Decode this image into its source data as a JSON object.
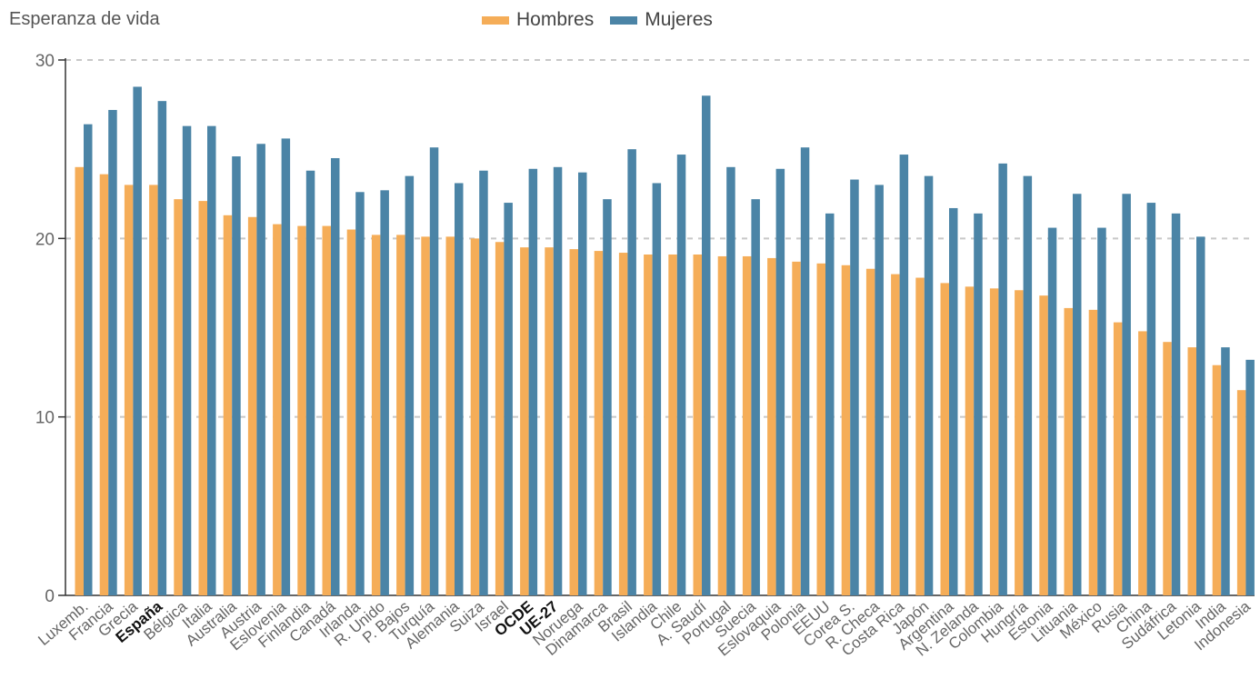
{
  "chart_data": {
    "type": "bar",
    "ylabel": "Esperanza de vida",
    "ylim": [
      0,
      30
    ],
    "yticks": [
      0,
      10,
      20,
      30
    ],
    "grid": true,
    "legend_position": "top-center",
    "categories": [
      "Luxemb.",
      "Francia",
      "Grecia",
      "España",
      "Bélgica",
      "Italia",
      "Australia",
      "Austria",
      "Eslovenia",
      "Finlandia",
      "Canadá",
      "Irlanda",
      "R. Unido",
      "P. Bajos",
      "Turquía",
      "Alemania",
      "Suiza",
      "Israel",
      "OCDE",
      "UE-27",
      "Noruega",
      "Dinamarca",
      "Brasil",
      "Islandia",
      "Chile",
      "A. Saudí",
      "Portugal",
      "Suecia",
      "Eslovaquia",
      "Polonia",
      "EEUU",
      "Corea S.",
      "R. Checa",
      "Costa Rica",
      "Japón",
      "Argentina",
      "N. Zelanda",
      "Colombia",
      "Hungría",
      "Estonia",
      "Lituania",
      "México",
      "Rusia",
      "China",
      "Sudáfrica",
      "Letonia",
      "India",
      "Indonesia"
    ],
    "bold_categories": [
      "España",
      "OCDE",
      "UE-27"
    ],
    "series": [
      {
        "name": "Hombres",
        "color": "#F5AD58",
        "values": [
          24.0,
          23.6,
          23.0,
          23.0,
          22.2,
          22.1,
          21.3,
          21.2,
          20.8,
          20.7,
          20.7,
          20.5,
          20.2,
          20.2,
          20.1,
          20.1,
          20.0,
          19.8,
          19.5,
          19.5,
          19.4,
          19.3,
          19.2,
          19.1,
          19.1,
          19.1,
          19.0,
          19.0,
          18.9,
          18.7,
          18.6,
          18.5,
          18.3,
          18.0,
          17.8,
          17.5,
          17.3,
          17.2,
          17.1,
          16.8,
          16.1,
          16.0,
          15.3,
          14.8,
          14.2,
          13.9,
          12.9,
          11.5
        ]
      },
      {
        "name": "Mujeres",
        "color": "#4B84A6",
        "values": [
          26.4,
          27.2,
          28.5,
          27.7,
          26.3,
          26.3,
          24.6,
          25.3,
          25.6,
          23.8,
          24.5,
          22.6,
          22.7,
          23.5,
          25.1,
          23.1,
          23.8,
          22.0,
          23.9,
          24.0,
          23.7,
          22.2,
          25.0,
          23.1,
          24.7,
          28.0,
          24.0,
          22.2,
          23.9,
          25.1,
          21.4,
          23.3,
          23.0,
          24.7,
          23.5,
          21.7,
          21.4,
          24.2,
          23.5,
          20.6,
          22.5,
          20.6,
          22.5,
          22.0,
          21.4,
          20.1,
          13.9,
          13.2
        ]
      }
    ]
  }
}
